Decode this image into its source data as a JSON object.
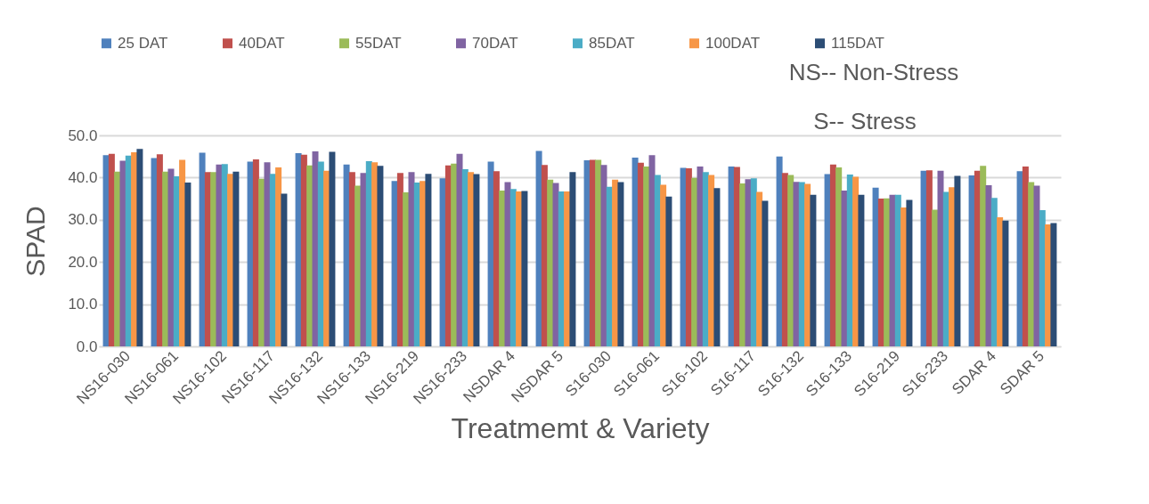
{
  "chart_data": {
    "type": "bar",
    "xlabel": "Treatmemt & Variety",
    "ylabel": "SPAD",
    "categories": [
      "NS16-030",
      "NS16-061",
      "NS16-102",
      "NS16-117",
      "NS16-132",
      "NS16-133",
      "NS16-219",
      "NS16-233",
      "NSDAR 4",
      "NSDAR 5",
      "S16-030",
      "S16-061",
      "S16-102",
      "S16-117",
      "S16-132",
      "S16-133",
      "S16-219",
      "S16-233",
      "SDAR 4",
      "SDAR 5"
    ],
    "series": [
      {
        "name": "25 DAT",
        "color": "#4f81bd",
        "values": [
          45.3,
          44.6,
          45.9,
          43.8,
          45.8,
          43.1,
          39.2,
          39.8,
          43.8,
          46.3,
          44.1,
          44.7,
          42.3,
          42.6,
          45.0,
          40.8,
          37.6,
          41.6,
          40.5,
          41.5
        ]
      },
      {
        "name": "40DAT",
        "color": "#c0504d",
        "values": [
          45.6,
          45.5,
          41.3,
          44.3,
          45.4,
          41.3,
          41.1,
          42.9,
          41.5,
          43.0,
          44.2,
          43.5,
          42.2,
          42.5,
          41.1,
          43.1,
          35.0,
          41.7,
          41.6,
          42.6
        ]
      },
      {
        "name": "55DAT",
        "color": "#9bbb59",
        "values": [
          41.4,
          41.4,
          41.3,
          39.7,
          42.9,
          38.1,
          36.5,
          43.3,
          36.9,
          39.5,
          44.2,
          42.6,
          39.9,
          38.6,
          40.6,
          42.4,
          35.1,
          32.4,
          42.8,
          38.9
        ]
      },
      {
        "name": "70DAT",
        "color": "#8064a2",
        "values": [
          44.0,
          42.1,
          43.1,
          43.6,
          46.2,
          41.1,
          41.3,
          45.6,
          38.9,
          38.7,
          43.0,
          45.3,
          42.6,
          39.6,
          39.0,
          36.9,
          35.9,
          41.6,
          38.2,
          38.1
        ]
      },
      {
        "name": "85DAT",
        "color": "#4bacc6",
        "values": [
          45.2,
          40.3,
          43.2,
          40.9,
          43.8,
          43.9,
          38.8,
          42.0,
          37.3,
          36.7,
          37.8,
          40.6,
          41.3,
          39.8,
          38.9,
          40.7,
          35.9,
          36.6,
          35.2,
          32.3
        ]
      },
      {
        "name": "100DAT",
        "color": "#f79646",
        "values": [
          46.0,
          44.2,
          40.9,
          42.4,
          41.6,
          43.6,
          39.2,
          41.3,
          36.7,
          36.7,
          39.5,
          38.3,
          40.6,
          36.6,
          38.5,
          40.2,
          32.9,
          37.7,
          30.6,
          28.9
        ]
      },
      {
        "name": "115DAT",
        "color": "#2c4d75",
        "values": [
          46.8,
          38.8,
          41.4,
          36.2,
          46.1,
          42.8,
          40.9,
          40.8,
          36.8,
          41.3,
          38.9,
          35.5,
          37.5,
          34.5,
          35.9,
          35.9,
          34.7,
          40.4,
          29.8,
          29.2
        ]
      }
    ],
    "ylim": [
      0,
      50
    ],
    "yticks": [
      {
        "value": 0,
        "label": "0.0"
      },
      {
        "value": 10,
        "label": "10.0"
      },
      {
        "value": 20,
        "label": "20.0"
      },
      {
        "value": 30,
        "label": "30.0"
      },
      {
        "value": 40,
        "label": "40.0"
      },
      {
        "value": 50,
        "label": "50.0"
      }
    ],
    "grid": "y",
    "legend": "top",
    "annotations": [
      "NS-- Non-Stress",
      "S-- Stress"
    ]
  }
}
